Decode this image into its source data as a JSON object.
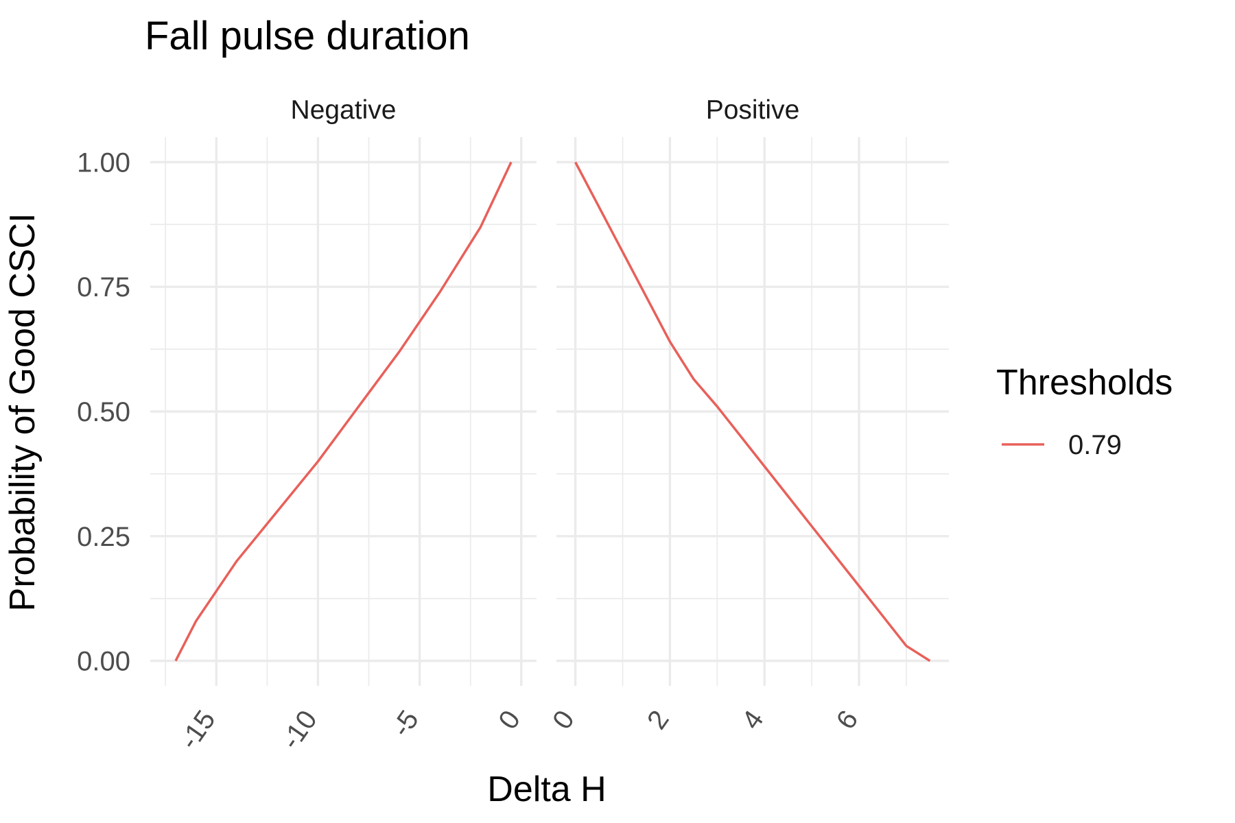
{
  "chart_data": {
    "type": "line",
    "title": "Fall pulse duration",
    "xlabel": "Delta H",
    "ylabel": "Probability of Good CSCI",
    "legend": {
      "title": "Thresholds",
      "placement": "right",
      "entries": [
        {
          "label": "0.79",
          "color": "#E8605A"
        }
      ]
    },
    "grid": true,
    "y_range": [
      0,
      1
    ],
    "y_ticks": [
      0,
      0.25,
      0.5,
      0.75,
      1
    ],
    "y_tick_labels": [
      "0.00",
      "0.25",
      "0.50",
      "0.75",
      "1.00"
    ],
    "panels": [
      {
        "name": "Negative",
        "x_range": [
          -17.5,
          0
        ],
        "x_ticks": [
          -15,
          -10,
          -5,
          0
        ],
        "x_tick_labels": [
          "-15",
          "-10",
          "-5",
          "0"
        ],
        "series": [
          {
            "name": "0.79",
            "color": "#E8605A",
            "x": [
              -17,
              -16,
              -14,
              -12,
              -10,
              -8,
              -6,
              -4,
              -2,
              -0.5
            ],
            "y": [
              0.0,
              0.08,
              0.2,
              0.3,
              0.4,
              0.51,
              0.62,
              0.74,
              0.87,
              1.0
            ]
          }
        ]
      },
      {
        "name": "Positive",
        "x_range": [
          0,
          7.5
        ],
        "x_ticks": [
          0,
          2,
          4,
          6
        ],
        "x_tick_labels": [
          "0",
          "2",
          "4",
          "6"
        ],
        "series": [
          {
            "name": "0.79",
            "color": "#E8605A",
            "x": [
              0,
              1,
              2,
              2.5,
              3,
              4,
              5,
              6,
              7,
              7.5
            ],
            "y": [
              1.0,
              0.82,
              0.64,
              0.565,
              0.51,
              0.39,
              0.27,
              0.15,
              0.03,
              0.0
            ]
          }
        ]
      }
    ]
  }
}
